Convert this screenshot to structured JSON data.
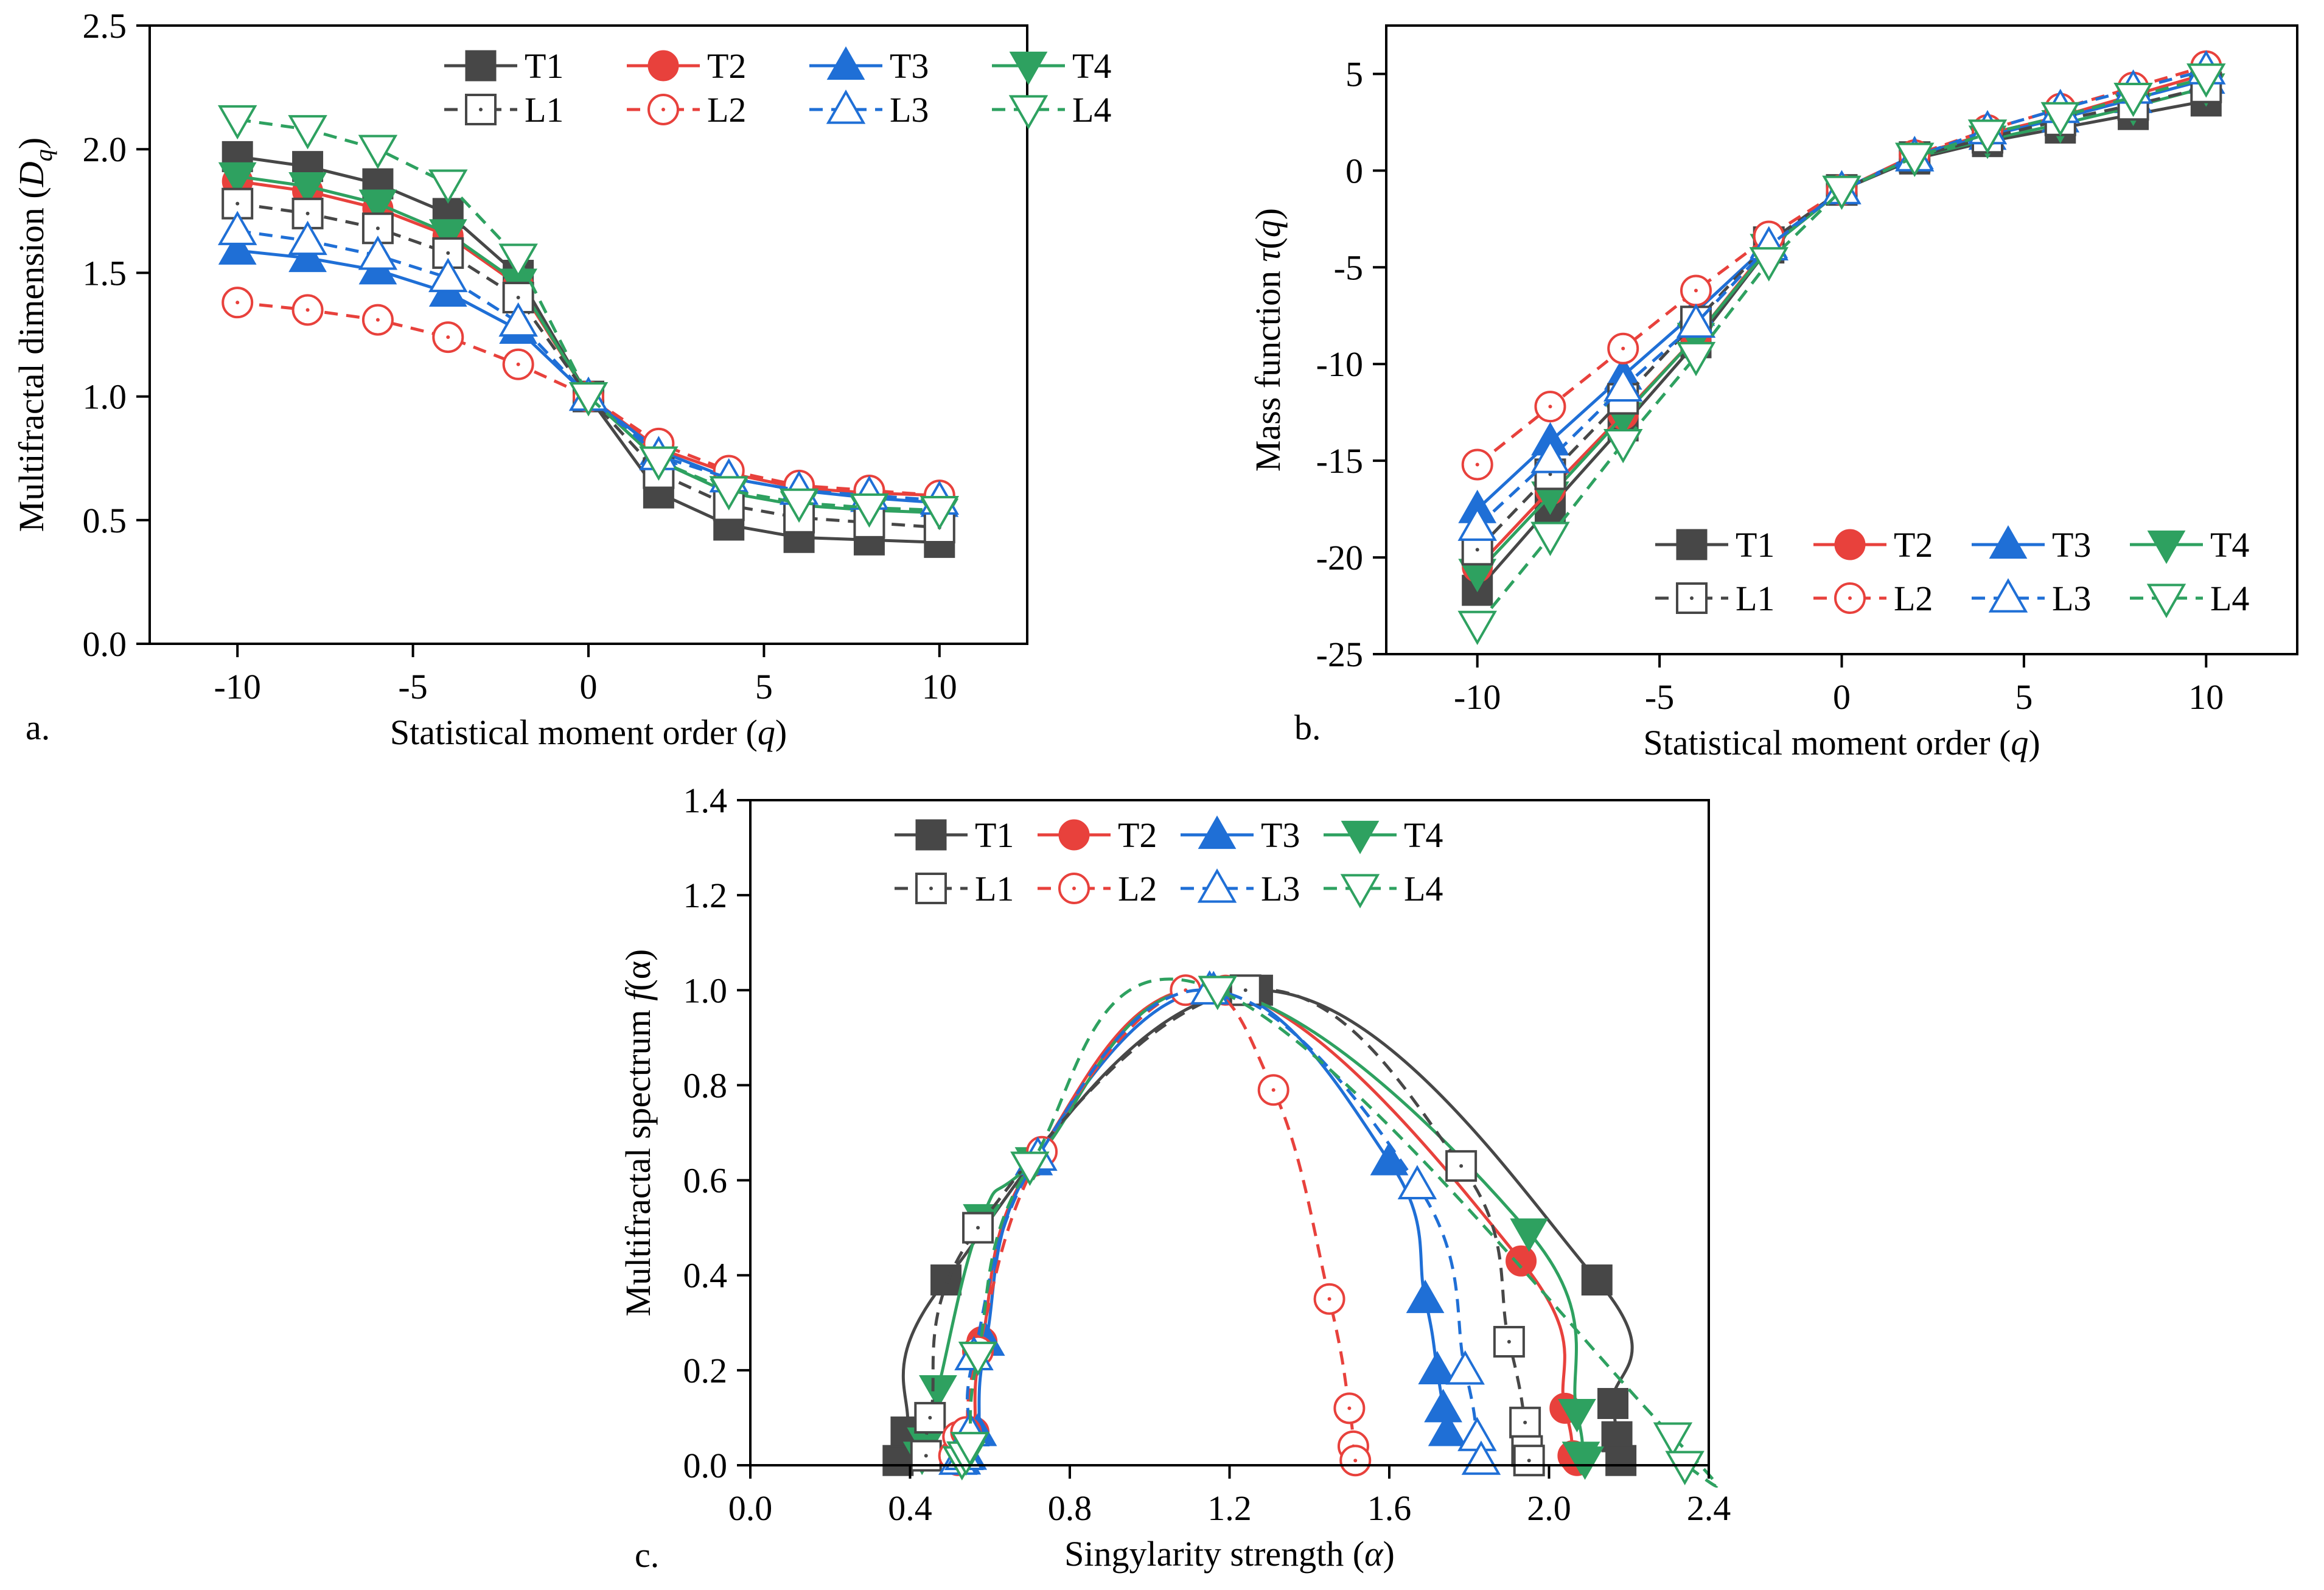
{
  "styles": {
    "T1": {
      "color": "#474747",
      "marker": "square",
      "filled": true,
      "dash": false
    },
    "T2": {
      "color": "#e8413c",
      "marker": "circle",
      "filled": true,
      "dash": false
    },
    "T3": {
      "color": "#1f6fd6",
      "marker": "triangle-up",
      "filled": true,
      "dash": false
    },
    "T4": {
      "color": "#2ea160",
      "marker": "triangle-down",
      "filled": true,
      "dash": false
    },
    "L1": {
      "color": "#474747",
      "marker": "square",
      "filled": false,
      "dash": true
    },
    "L2": {
      "color": "#e8413c",
      "marker": "circle",
      "filled": false,
      "dash": true
    },
    "L3": {
      "color": "#1f6fd6",
      "marker": "triangle-up",
      "filled": false,
      "dash": true
    },
    "L4": {
      "color": "#2ea160",
      "marker": "triangle-down",
      "filled": false,
      "dash": true
    }
  },
  "chart_data": [
    {
      "id": "a",
      "panel_label": "a.",
      "type": "line",
      "xlabel": "Statistical moment order (",
      "xlabel_var": "q",
      "xlabel_end": ")",
      "ylabel": "Multifractal dimension (",
      "ylabel_var": "D",
      "ylabel_sub": "q",
      "ylabel_end": ")",
      "xlim": [
        -12.5,
        12.5
      ],
      "ylim": [
        0,
        2.5
      ],
      "xticks": [
        -10,
        -5,
        0,
        5,
        10
      ],
      "xtick_labels": [
        "-10",
        "-5",
        "0",
        "5",
        "10"
      ],
      "yticks": [
        0,
        0.5,
        1,
        1.5,
        2,
        2.5
      ],
      "ytick_labels": [
        "0.0",
        "0.5",
        "1.0",
        "1.5",
        "2.0",
        "2.5"
      ],
      "legend_position": "top-right",
      "series": [
        {
          "name": "T1",
          "x": [
            -10,
            -8,
            -6,
            -4,
            -2,
            0,
            2,
            4,
            6,
            8,
            10
          ],
          "y": [
            1.97,
            1.93,
            1.86,
            1.74,
            1.49,
            1.0,
            0.61,
            0.48,
            0.43,
            0.42,
            0.41
          ]
        },
        {
          "name": "T2",
          "x": [
            -10,
            -8,
            -6,
            -4,
            -2,
            0,
            2,
            4,
            6,
            8,
            10
          ],
          "y": [
            1.87,
            1.83,
            1.76,
            1.65,
            1.45,
            1.0,
            0.79,
            0.69,
            0.63,
            0.61,
            0.6
          ]
        },
        {
          "name": "T3",
          "x": [
            -10,
            -8,
            -6,
            -4,
            -2,
            0,
            2,
            4,
            6,
            8,
            10
          ],
          "y": [
            1.59,
            1.56,
            1.51,
            1.42,
            1.27,
            1.0,
            0.78,
            0.67,
            0.62,
            0.59,
            0.57
          ]
        },
        {
          "name": "T4",
          "x": [
            -10,
            -8,
            -6,
            -4,
            -2,
            0,
            2,
            4,
            6,
            8,
            10
          ],
          "y": [
            1.89,
            1.85,
            1.78,
            1.66,
            1.46,
            1.0,
            0.74,
            0.61,
            0.56,
            0.54,
            0.53
          ]
        },
        {
          "name": "L1",
          "x": [
            -10,
            -8,
            -6,
            -4,
            -2,
            0,
            2,
            4,
            6,
            8,
            10
          ],
          "y": [
            1.78,
            1.74,
            1.68,
            1.58,
            1.4,
            1.0,
            0.69,
            0.56,
            0.51,
            0.49,
            0.47
          ]
        },
        {
          "name": "L2",
          "x": [
            -10,
            -8,
            -6,
            -4,
            -2,
            0,
            2,
            4,
            6,
            8,
            10
          ],
          "y": [
            1.38,
            1.35,
            1.31,
            1.24,
            1.13,
            1.0,
            0.81,
            0.7,
            0.64,
            0.62,
            0.6
          ]
        },
        {
          "name": "L3",
          "x": [
            -10,
            -8,
            -6,
            -4,
            -2,
            0,
            2,
            4,
            6,
            8,
            10
          ],
          "y": [
            1.67,
            1.63,
            1.57,
            1.48,
            1.3,
            1.0,
            0.76,
            0.67,
            0.62,
            0.6,
            0.58
          ]
        },
        {
          "name": "L4",
          "x": [
            -10,
            -8,
            -6,
            -4,
            -2,
            0,
            2,
            4,
            6,
            8,
            10
          ],
          "y": [
            2.12,
            2.08,
            2.0,
            1.86,
            1.56,
            1.0,
            0.74,
            0.62,
            0.57,
            0.55,
            0.54
          ]
        }
      ]
    },
    {
      "id": "b",
      "panel_label": "b.",
      "type": "line",
      "xlabel": "Statistical moment order (",
      "xlabel_var": "q",
      "xlabel_end": ")",
      "ylabel": "Mass function ",
      "ylabel_var": "τ",
      "ylabel_sub": "",
      "ylabel_end": "(q)",
      "xlim": [
        -12.5,
        12.5
      ],
      "ylim": [
        -25,
        7.5
      ],
      "xticks": [
        -10,
        -5,
        0,
        5,
        10
      ],
      "xtick_labels": [
        "-10",
        "-5",
        "0",
        "5",
        "10"
      ],
      "yticks": [
        -25,
        -20,
        -15,
        -10,
        -5,
        0,
        5
      ],
      "ytick_labels": [
        "-25",
        "-20",
        "-15",
        "-10",
        "-5",
        "0",
        "5"
      ],
      "legend_position": "bottom-right",
      "series": [
        {
          "name": "T1",
          "x": [
            -10,
            -8,
            -6,
            -4,
            -2,
            0,
            2,
            4,
            6,
            8,
            10
          ],
          "y": [
            -21.7,
            -17.4,
            -13.2,
            -8.9,
            -4.0,
            -1.0,
            0.6,
            1.5,
            2.2,
            2.9,
            3.6
          ]
        },
        {
          "name": "T2",
          "x": [
            -10,
            -8,
            -6,
            -4,
            -2,
            0,
            2,
            4,
            6,
            8,
            10
          ],
          "y": [
            -20.5,
            -16.5,
            -12.6,
            -8.6,
            -3.9,
            -1.0,
            0.8,
            1.9,
            2.8,
            3.9,
            5.0
          ]
        },
        {
          "name": "T3",
          "x": [
            -10,
            -8,
            -6,
            -4,
            -2,
            0,
            2,
            4,
            6,
            8,
            10
          ],
          "y": [
            -17.5,
            -14.0,
            -10.6,
            -7.3,
            -3.8,
            -1.0,
            0.8,
            1.8,
            2.7,
            3.7,
            4.7
          ]
        },
        {
          "name": "T4",
          "x": [
            -10,
            -8,
            -6,
            -4,
            -2,
            0,
            2,
            4,
            6,
            8,
            10
          ],
          "y": [
            -20.8,
            -16.8,
            -12.7,
            -8.6,
            -4.0,
            -1.0,
            0.7,
            1.6,
            2.4,
            3.3,
            4.3
          ]
        },
        {
          "name": "L1",
          "x": [
            -10,
            -8,
            -6,
            -4,
            -2,
            0,
            2,
            4,
            6,
            8,
            10
          ],
          "y": [
            -19.6,
            -15.7,
            -11.8,
            -7.8,
            -3.7,
            -1.0,
            0.7,
            1.7,
            2.6,
            3.4,
            4.3
          ]
        },
        {
          "name": "L2",
          "x": [
            -10,
            -8,
            -6,
            -4,
            -2,
            0,
            2,
            4,
            6,
            8,
            10
          ],
          "y": [
            -15.2,
            -12.2,
            -9.2,
            -6.2,
            -3.4,
            -1.0,
            0.8,
            2.1,
            3.2,
            4.3,
            5.4
          ]
        },
        {
          "name": "L3",
          "x": [
            -10,
            -8,
            -6,
            -4,
            -2,
            0,
            2,
            4,
            6,
            8,
            10
          ],
          "y": [
            -18.4,
            -14.9,
            -11.2,
            -7.9,
            -3.9,
            -1.0,
            0.7,
            2.1,
            3.2,
            4.2,
            5.2
          ]
        },
        {
          "name": "L4",
          "x": [
            -10,
            -8,
            -6,
            -4,
            -2,
            0,
            2,
            4,
            6,
            8,
            10
          ],
          "y": [
            -23.5,
            -18.9,
            -14.1,
            -9.6,
            -4.7,
            -1.0,
            0.7,
            1.9,
            2.8,
            3.8,
            4.8
          ]
        }
      ]
    },
    {
      "id": "c",
      "panel_label": "c.",
      "type": "line",
      "smooth": true,
      "xlabel": "Singylarity strength (",
      "xlabel_var": "α",
      "xlabel_end": ")",
      "ylabel": "Multifractal spectrum  ",
      "ylabel_var": "f",
      "ylabel_sub": "",
      "ylabel_end": "(α)",
      "xlim": [
        0,
        2.4
      ],
      "ylim": [
        0,
        1.4
      ],
      "xticks": [
        0,
        0.4,
        0.8,
        1.2,
        1.6,
        2.0,
        2.4
      ],
      "xtick_labels": [
        "0.0",
        "0.4",
        "0.8",
        "1.2",
        "1.6",
        "2.0",
        "2.4"
      ],
      "yticks": [
        0,
        0.2,
        0.4,
        0.6,
        0.8,
        1.0,
        1.2,
        1.4
      ],
      "ytick_labels": [
        "0.0",
        "0.2",
        "0.4",
        "0.6",
        "0.8",
        "1.0",
        "1.2",
        "1.4"
      ],
      "legend_position": "top-left",
      "series": [
        {
          "name": "T1",
          "x": [
            0.37,
            0.39,
            0.49,
            1.27,
            2.12,
            2.16,
            2.17,
            2.18
          ],
          "y": [
            0.01,
            0.07,
            0.39,
            1.0,
            0.39,
            0.13,
            0.06,
            0.01
          ]
        },
        {
          "name": "T2",
          "x": [
            0.52,
            0.53,
            0.56,
            0.58,
            0.71,
            1.19,
            1.93,
            2.04,
            2.06,
            2.07
          ],
          "y": [
            0.01,
            0.03,
            0.07,
            0.26,
            0.64,
            1.0,
            0.43,
            0.12,
            0.02,
            0.01
          ]
        },
        {
          "name": "T3",
          "x": [
            0.53,
            0.545,
            0.57,
            0.59,
            0.71,
            1.16,
            1.6,
            1.69,
            1.72,
            1.735,
            1.745
          ],
          "y": [
            0.01,
            0.02,
            0.07,
            0.26,
            0.64,
            1.0,
            0.64,
            0.35,
            0.2,
            0.12,
            0.07
          ]
        },
        {
          "name": "T4",
          "x": [
            0.43,
            0.44,
            0.47,
            0.58,
            0.71,
            1.17,
            1.95,
            2.07,
            2.08,
            2.09
          ],
          "y": [
            0.02,
            0.05,
            0.16,
            0.52,
            0.64,
            1.0,
            0.49,
            0.11,
            0.02,
            0.01
          ]
        },
        {
          "name": "L1",
          "x": [
            0.44,
            0.45,
            0.57,
            1.24,
            1.78,
            1.9,
            1.94,
            1.945,
            1.95
          ],
          "y": [
            0.02,
            0.1,
            0.5,
            1.0,
            0.63,
            0.26,
            0.09,
            0.03,
            0.01
          ]
        },
        {
          "name": "L2",
          "x": [
            0.51,
            0.52,
            0.54,
            0.57,
            0.73,
            1.09,
            1.31,
            1.45,
            1.5,
            1.51,
            1.515
          ],
          "y": [
            0.02,
            0.06,
            0.07,
            0.24,
            0.66,
            1.0,
            0.79,
            0.35,
            0.12,
            0.04,
            0.01
          ]
        },
        {
          "name": "L3",
          "x": [
            0.52,
            0.535,
            0.55,
            0.56,
            0.72,
            1.15,
            1.67,
            1.79,
            1.82,
            1.83
          ],
          "y": [
            0.01,
            0.02,
            0.07,
            0.23,
            0.65,
            1.0,
            0.59,
            0.2,
            0.06,
            0.01
          ]
        },
        {
          "name": "L4",
          "x": [
            0.53,
            0.54,
            0.55,
            0.57,
            0.7,
            1.17,
            2.31,
            2.34
          ],
          "y": [
            0.01,
            0.02,
            0.04,
            0.23,
            0.63,
            1.0,
            0.06,
            0.0
          ]
        }
      ]
    }
  ]
}
